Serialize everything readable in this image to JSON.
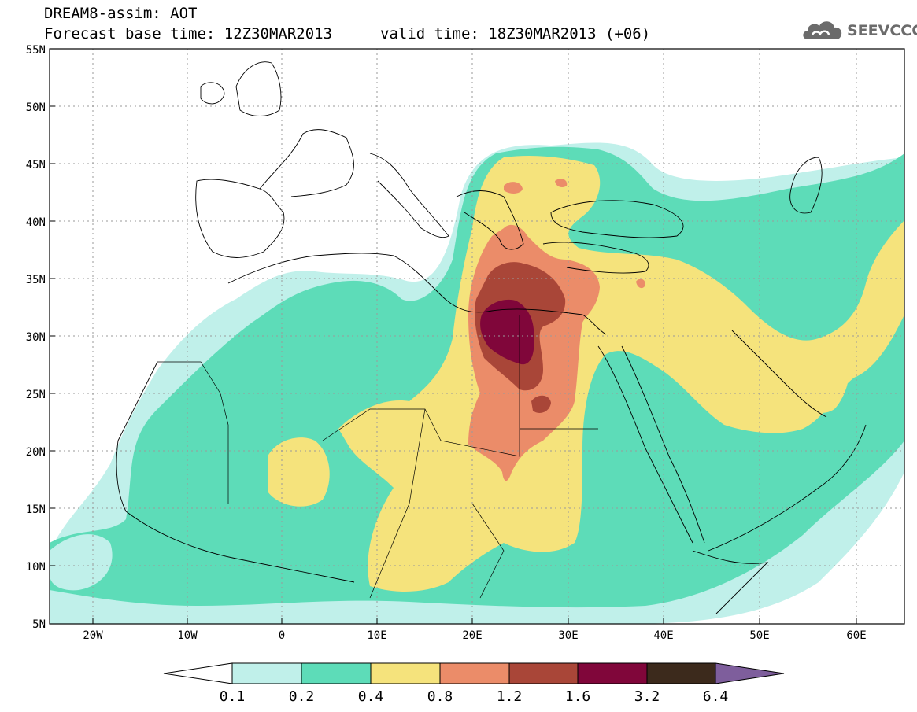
{
  "header": {
    "title_line1": "DREAM8-assim: AOT",
    "title_line2": "Forecast base time: 12Z30MAR2013",
    "valid_time": "valid time: 18Z30MAR2013 (+06)",
    "logo_text": "SEEVCCC",
    "logo_icon": "cloud-icon"
  },
  "map": {
    "latitude_labels": [
      "55N",
      "50N",
      "45N",
      "40N",
      "35N",
      "30N",
      "25N",
      "20N",
      "15N",
      "10N",
      "5N"
    ],
    "longitude_labels": [
      "20W",
      "10W",
      "0",
      "10E",
      "20E",
      "30E",
      "40E",
      "50E",
      "60E"
    ],
    "lon_range": [
      -25,
      65
    ],
    "lat_range": [
      5,
      55
    ],
    "grid": "dotted"
  },
  "colorbar": {
    "boundaries": [
      "0.1",
      "0.2",
      "0.4",
      "0.8",
      "1.2",
      "1.6",
      "3.2",
      "6.4"
    ],
    "colors": [
      "#ffffff",
      "#c0f0ea",
      "#5ddcb8",
      "#f5e37c",
      "#eb8c69",
      "#a94638",
      "#80063a",
      "#3c2a1c",
      "#7e5e9c"
    ]
  },
  "colors": {
    "aot_0_1": "#c0f0ea",
    "aot_0_2": "#5ddcb8",
    "aot_0_4": "#f5e37c",
    "aot_0_8": "#eb8c69",
    "aot_1_2": "#a94638",
    "aot_1_6": "#80063a"
  }
}
